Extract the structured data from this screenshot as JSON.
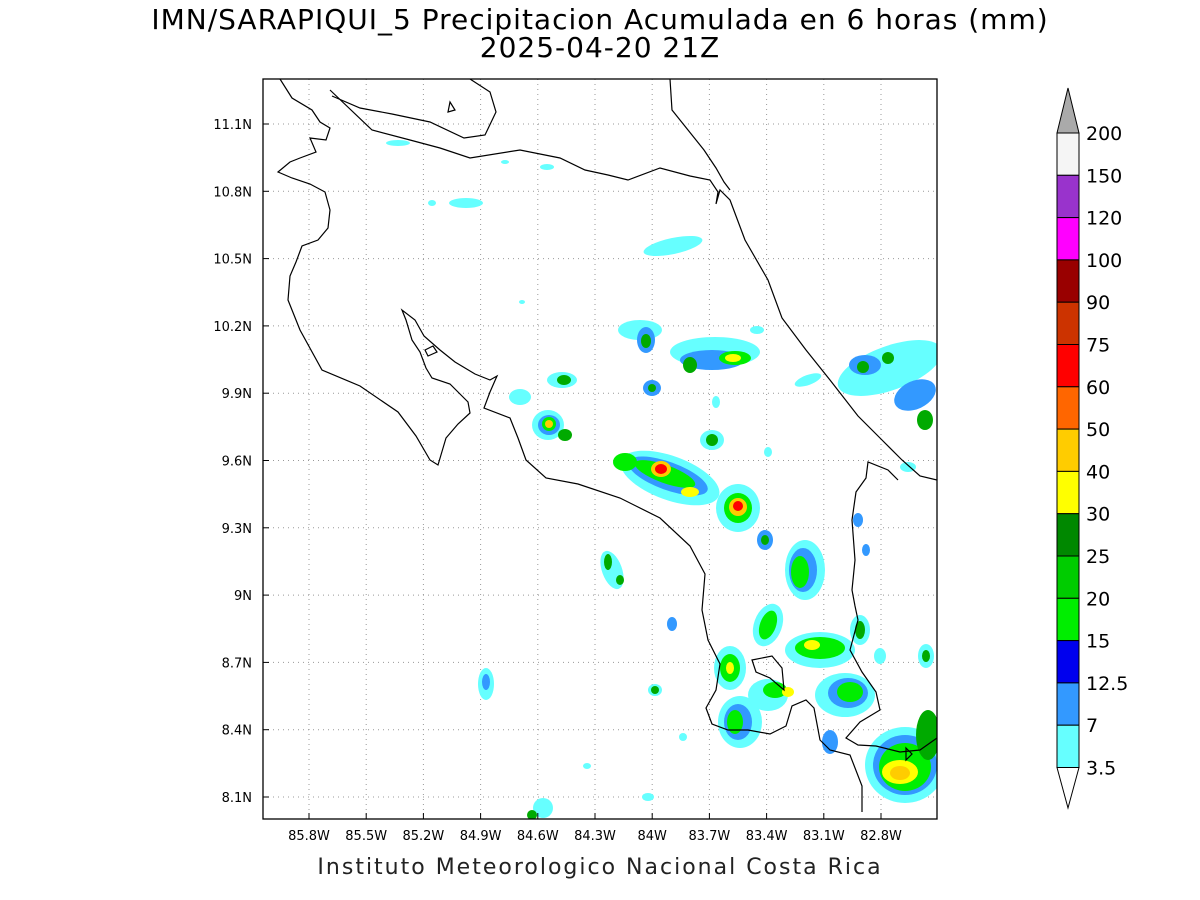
{
  "header": {
    "title_line1": "IMN/SARAPIQUI_5 Precipitacion Acumulada en 6 horas (mm)",
    "title_line2": "2025-04-20 21Z"
  },
  "map": {
    "x_ticks": [
      "85.8W",
      "85.5W",
      "85.2W",
      "84.9W",
      "84.6W",
      "84.3W",
      "84W",
      "83.7W",
      "83.4W",
      "83.1W",
      "82.8W"
    ],
    "y_ticks": [
      "11.1N",
      "10.8N",
      "10.5N",
      "10.2N",
      "9.9N",
      "9.6N",
      "9.3N",
      "9N",
      "8.7N",
      "8.4N",
      "8.1N"
    ],
    "grid": true
  },
  "legend": {
    "labels": [
      "3.5",
      "7",
      "12.5",
      "15",
      "20",
      "25",
      "30",
      "40",
      "50",
      "60",
      "75",
      "90",
      "100",
      "120",
      "150",
      "200"
    ],
    "colors": [
      "#66ffff",
      "#3399ff",
      "#0000ee",
      "#00ee00",
      "#00cc00",
      "#008800",
      "#ffff00",
      "#ffcc00",
      "#ff6600",
      "#ff0000",
      "#cc3300",
      "#990000",
      "#ff00ff",
      "#9933cc",
      "#f5f5f5",
      "#aaaaaa"
    ]
  },
  "footer": {
    "text": "Instituto Meteorologico Nacional Costa Rica"
  }
}
